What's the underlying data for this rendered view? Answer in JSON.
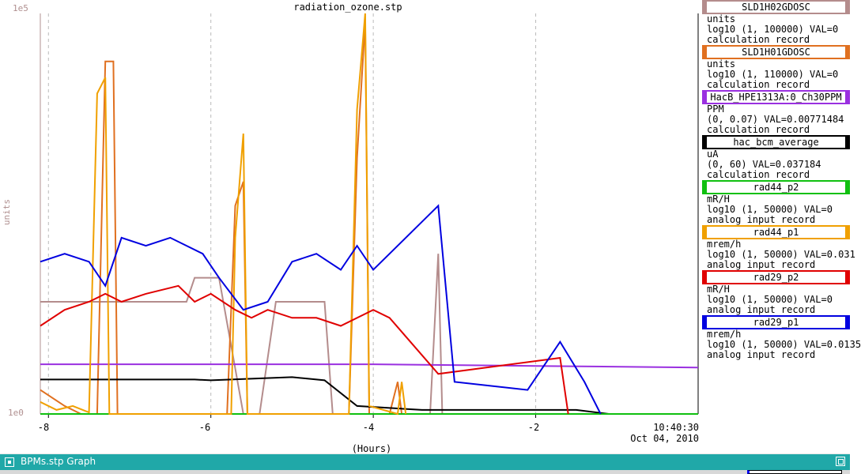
{
  "plot": {
    "title": "radiation_ozone.stp",
    "y_top_label": "1e5",
    "y_bottom_label": "1e0",
    "y_axis_label": "units",
    "x_ticks": [
      "-8",
      "-6",
      "-4",
      "-2"
    ],
    "x_time": "10:40:30",
    "x_date": "Oct 04, 2010",
    "x_unit_label": "(Hours)"
  },
  "legend": [
    {
      "name": "SLD1H02GDOSC",
      "color": "#b48c8c",
      "units": "units",
      "range": "log10 (1, 100000) VAL=0",
      "kind": "calculation record"
    },
    {
      "name": "SLD1H01GDOSC",
      "color": "#e07020",
      "units": "units",
      "range": "log10 (1, 110000) VAL=0",
      "kind": "calculation record"
    },
    {
      "name": "HacB_HPE1313A:0_Ch30PPM",
      "color": "#9a30e0",
      "units": "PPM",
      "range": "(0, 0.07) VAL=0.00771484",
      "kind": "calculation record"
    },
    {
      "name": "hac_bcm_average",
      "color": "#000000",
      "units": "uA",
      "range": "(0, 60) VAL=0.037184",
      "kind": "calculation record"
    },
    {
      "name": "rad44_p2",
      "color": "#10c010",
      "units": "mR/H",
      "range": "log10 (1, 50000) VAL=0",
      "kind": "analog input record"
    },
    {
      "name": "rad44_p1",
      "color": "#f0a000",
      "units": "mrem/h",
      "range": "log10 (1, 50000) VAL=0.031",
      "kind": "analog input record"
    },
    {
      "name": "rad29_p2",
      "color": "#e00000",
      "units": "mR/H",
      "range": "log10 (1, 50000) VAL=0",
      "kind": "analog input record"
    },
    {
      "name": "rad29_p1",
      "color": "#0000e0",
      "units": "mrem/h",
      "range": "log10 (1, 50000) VAL=0.0135",
      "kind": "analog input record"
    }
  ],
  "taskbar": {
    "title": "BPMs.stp Graph"
  },
  "chart_data": {
    "type": "line",
    "title": "radiation_ozone.stp",
    "xlabel": "(Hours)",
    "ylabel": "units",
    "xlim": [
      -8.1,
      0
    ],
    "ylim_log10": [
      0,
      5
    ],
    "grid": true,
    "legend_placement": "right",
    "series": [
      {
        "name": "SLD1H02GDOSC",
        "color": "#b48c8c",
        "points": [
          [
            -8.1,
            1.4
          ],
          [
            -7.95,
            1.4
          ],
          [
            -7.95,
            1.4
          ],
          [
            -7.3,
            1.4
          ],
          [
            -7.3,
            1.4
          ],
          [
            -6.3,
            1.4
          ],
          [
            -6.2,
            1.7
          ],
          [
            -5.9,
            1.7
          ],
          [
            -5.6,
            0
          ],
          [
            -5.4,
            0
          ],
          [
            -5.2,
            1.4
          ],
          [
            -4.95,
            1.4
          ],
          [
            -4.8,
            1.4
          ],
          [
            -4.6,
            1.4
          ],
          [
            -4.5,
            0
          ],
          [
            -3.3,
            0
          ],
          [
            -3.2,
            2.0
          ],
          [
            -3.15,
            0
          ],
          [
            -0.8,
            0
          ]
        ]
      },
      {
        "name": "SLD1H01GDOSC",
        "color": "#e07020",
        "points": [
          [
            -8.1,
            0.3
          ],
          [
            -7.8,
            0.1
          ],
          [
            -7.6,
            0
          ],
          [
            -7.4,
            0
          ],
          [
            -7.3,
            4.4
          ],
          [
            -7.2,
            4.4
          ],
          [
            -7.15,
            0
          ],
          [
            -5.8,
            0
          ],
          [
            -5.7,
            2.6
          ],
          [
            -5.6,
            2.9
          ],
          [
            -5.55,
            0
          ],
          [
            -4.3,
            0
          ],
          [
            -4.2,
            3.2
          ],
          [
            -4.1,
            4.9
          ],
          [
            -4.05,
            0
          ],
          [
            -3.8,
            0
          ],
          [
            -3.7,
            0.4
          ],
          [
            -3.65,
            0
          ]
        ]
      },
      {
        "name": "HacB_HPE1313A:0_Ch30PPM",
        "color": "#9a30e0",
        "points": [
          [
            -8.1,
            0.62
          ],
          [
            -4.0,
            0.62
          ],
          [
            -2.0,
            0.6
          ],
          [
            0,
            0.58
          ]
        ]
      },
      {
        "name": "hac_bcm_average",
        "color": "#000000",
        "points": [
          [
            -8.1,
            0.43
          ],
          [
            -6.2,
            0.43
          ],
          [
            -6.0,
            0.42
          ],
          [
            -5.0,
            0.46
          ],
          [
            -4.6,
            0.42
          ],
          [
            -4.2,
            0.1
          ],
          [
            -3.4,
            0.05
          ],
          [
            -3.0,
            0.05
          ],
          [
            -2.5,
            0.05
          ],
          [
            -1.5,
            0.05
          ],
          [
            -1.1,
            0
          ],
          [
            0,
            0
          ]
        ]
      },
      {
        "name": "rad44_p2",
        "color": "#10c010",
        "points": [
          [
            -8.1,
            0
          ],
          [
            0,
            0
          ]
        ]
      },
      {
        "name": "rad44_p1",
        "color": "#f0a000",
        "points": [
          [
            -8.1,
            0.15
          ],
          [
            -7.9,
            0.05
          ],
          [
            -7.7,
            0.1
          ],
          [
            -7.5,
            0.02
          ],
          [
            -7.4,
            4.0
          ],
          [
            -7.3,
            4.2
          ],
          [
            -7.25,
            0
          ],
          [
            -5.75,
            0
          ],
          [
            -5.7,
            2.2
          ],
          [
            -5.6,
            3.5
          ],
          [
            -5.55,
            0
          ],
          [
            -4.3,
            0
          ],
          [
            -4.2,
            3.8
          ],
          [
            -4.1,
            5.0
          ],
          [
            -4.05,
            0.1
          ],
          [
            -3.7,
            0
          ],
          [
            -3.65,
            0.4
          ],
          [
            -3.6,
            0
          ]
        ]
      },
      {
        "name": "rad29_p2",
        "color": "#e00000",
        "points": [
          [
            -8.1,
            1.1
          ],
          [
            -7.8,
            1.3
          ],
          [
            -7.5,
            1.4
          ],
          [
            -7.3,
            1.5
          ],
          [
            -7.1,
            1.4
          ],
          [
            -6.8,
            1.5
          ],
          [
            -6.4,
            1.6
          ],
          [
            -6.2,
            1.4
          ],
          [
            -6.0,
            1.5
          ],
          [
            -5.7,
            1.3
          ],
          [
            -5.5,
            1.2
          ],
          [
            -5.3,
            1.3
          ],
          [
            -5.0,
            1.2
          ],
          [
            -4.7,
            1.2
          ],
          [
            -4.4,
            1.1
          ],
          [
            -4.0,
            1.3
          ],
          [
            -3.8,
            1.2
          ],
          [
            -3.2,
            0.5
          ],
          [
            -1.7,
            0.7
          ],
          [
            -1.6,
            0
          ]
        ]
      },
      {
        "name": "rad29_p1",
        "color": "#0000e0",
        "points": [
          [
            -8.1,
            1.9
          ],
          [
            -7.8,
            2.0
          ],
          [
            -7.5,
            1.9
          ],
          [
            -7.3,
            1.6
          ],
          [
            -7.1,
            2.2
          ],
          [
            -6.8,
            2.1
          ],
          [
            -6.5,
            2.2
          ],
          [
            -6.1,
            2.0
          ],
          [
            -5.9,
            1.7
          ],
          [
            -5.6,
            1.3
          ],
          [
            -5.3,
            1.4
          ],
          [
            -5.0,
            1.9
          ],
          [
            -4.7,
            2.0
          ],
          [
            -4.4,
            1.8
          ],
          [
            -4.2,
            2.1
          ],
          [
            -4.0,
            1.8
          ],
          [
            -3.8,
            2.0
          ],
          [
            -3.2,
            2.6
          ],
          [
            -3.0,
            0.4
          ],
          [
            -2.1,
            0.3
          ],
          [
            -1.7,
            0.9
          ],
          [
            -1.4,
            0.4
          ],
          [
            -1.2,
            0
          ]
        ]
      }
    ]
  }
}
